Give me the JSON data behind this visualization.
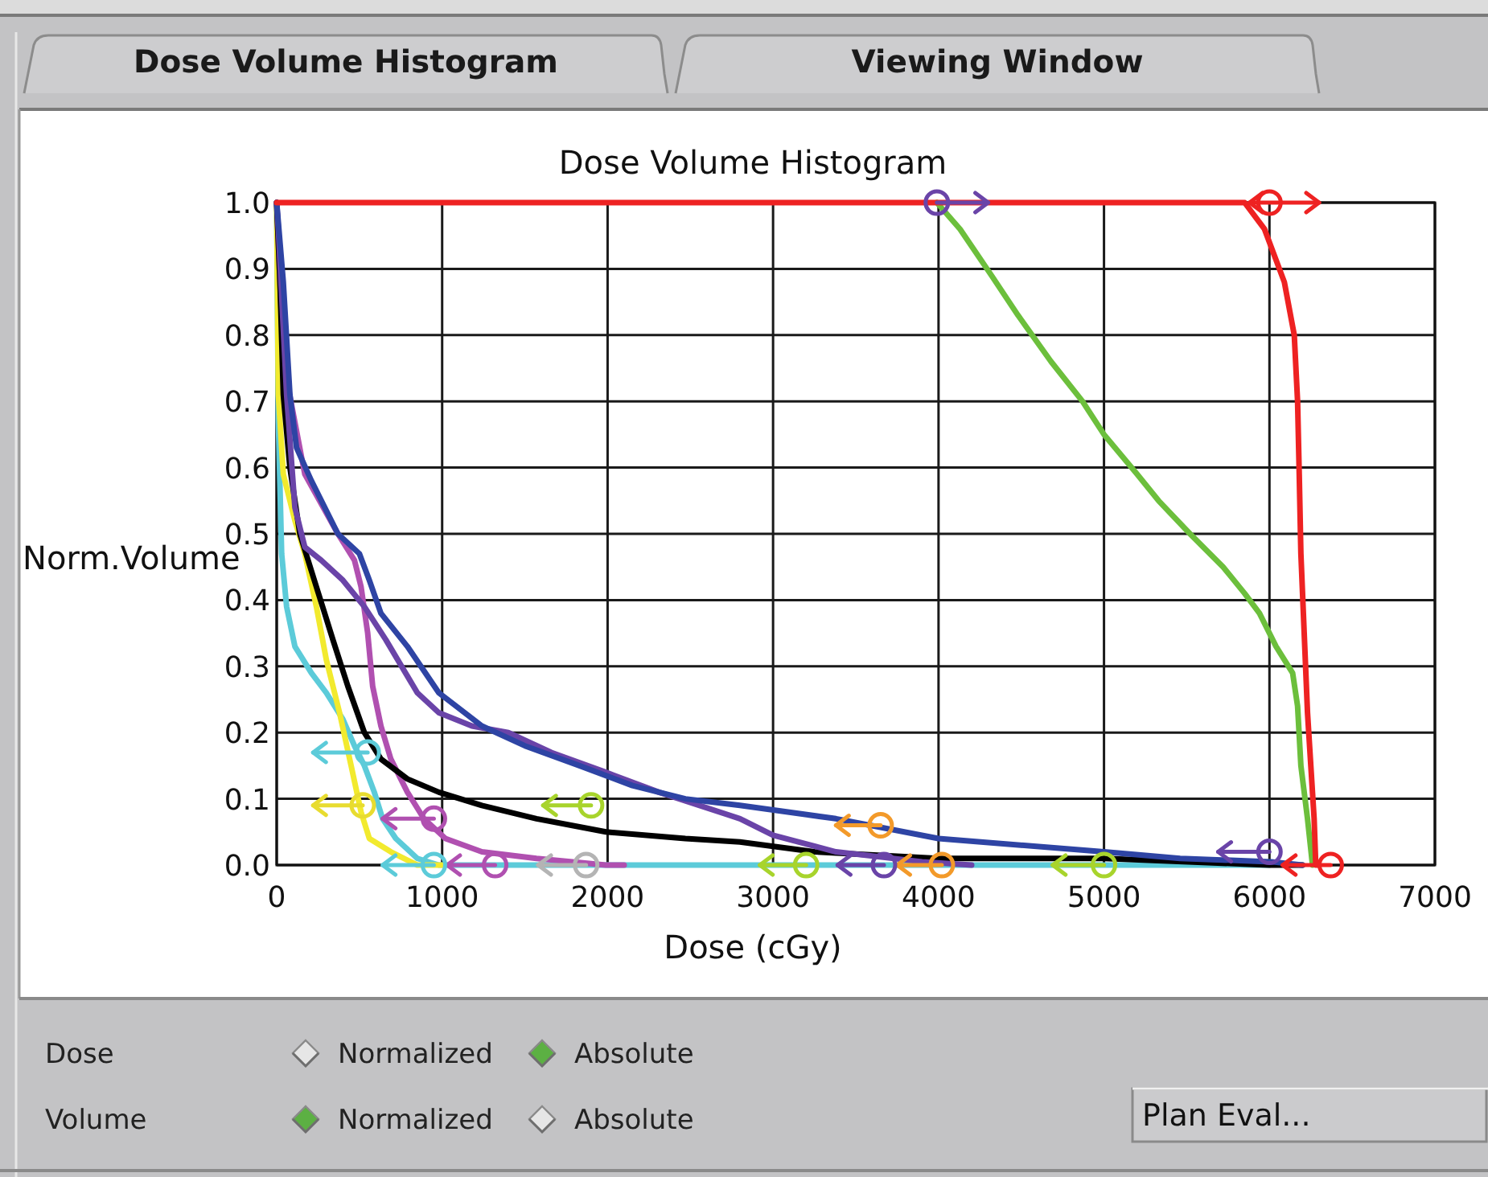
{
  "chart_data": {
    "type": "line",
    "title": "Dose Volume Histogram",
    "xlabel": "Dose (cGy)",
    "ylabel": "Norm.Volume",
    "xlim": [
      0,
      7000
    ],
    "xticks": [
      0,
      1000,
      2000,
      3000,
      4000,
      5000,
      6000,
      7000
    ],
    "ylim": [
      0,
      1.0
    ],
    "yticks": [
      {
        "value": 0,
        "label": "0.0"
      },
      0.1,
      0.2,
      0.3,
      0.4,
      0.5,
      0.6,
      0.7,
      0.8,
      0.9,
      {
        "value": 1,
        "label": "1.0"
      }
    ],
    "grid": true,
    "series": [
      {
        "color": "#5ccbd9",
        "x": [
          0,
          10,
          30,
          60,
          110,
          210,
          300,
          400,
          470,
          530,
          590,
          640,
          720,
          850,
          980,
          6000
        ],
        "values": [
          1,
          0.67,
          0.47,
          0.39,
          0.33,
          0.29,
          0.26,
          0.22,
          0.18,
          0.15,
          0.11,
          0.07,
          0.04,
          0.01,
          0,
          0
        ]
      },
      {
        "color": "#f2ea2e",
        "x": [
          0,
          10,
          40,
          110,
          170,
          240,
          300,
          380,
          450,
          510,
          560,
          690,
          850,
          1000
        ],
        "values": [
          1,
          0.71,
          0.59,
          0.52,
          0.47,
          0.39,
          0.31,
          0.23,
          0.15,
          0.08,
          0.04,
          0.02,
          0,
          0
        ]
      },
      {
        "color": "#b050b0",
        "x": [
          0,
          40,
          170,
          370,
          470,
          510,
          550,
          580,
          630,
          690,
          790,
          890,
          1020,
          1240,
          1570,
          1990,
          2100
        ],
        "values": [
          1,
          0.76,
          0.59,
          0.5,
          0.46,
          0.42,
          0.35,
          0.27,
          0.21,
          0.16,
          0.11,
          0.07,
          0.04,
          0.02,
          0.01,
          0,
          0
        ]
      },
      {
        "color": "#000000",
        "x": [
          0,
          20,
          40,
          80,
          140,
          240,
          340,
          430,
          530,
          630,
          790,
          980,
          1240,
          1570,
          1990,
          2470,
          2800,
          3250,
          4000,
          5000,
          6000,
          6200
        ],
        "values": [
          1,
          0.88,
          0.71,
          0.6,
          0.5,
          0.42,
          0.34,
          0.27,
          0.2,
          0.16,
          0.13,
          0.11,
          0.09,
          0.07,
          0.05,
          0.04,
          0.035,
          0.02,
          0.01,
          0.01,
          0,
          0
        ]
      },
      {
        "color": "#6a44a8",
        "x": [
          0,
          10,
          60,
          110,
          170,
          270,
          400,
          530,
          660,
          850,
          980,
          1180,
          1400,
          1660,
          1990,
          2310,
          2800,
          3000,
          3380,
          3900,
          4200
        ],
        "values": [
          1,
          0.96,
          0.71,
          0.54,
          0.48,
          0.46,
          0.43,
          0.39,
          0.34,
          0.26,
          0.23,
          0.21,
          0.2,
          0.17,
          0.14,
          0.11,
          0.07,
          0.045,
          0.02,
          0.005,
          0
        ]
      },
      {
        "color": "#2e44a4",
        "x": [
          0,
          40,
          80,
          120,
          210,
          370,
          500,
          560,
          630,
          790,
          980,
          1240,
          1500,
          1830,
          2150,
          2470,
          2800,
          3380,
          4000,
          5000,
          5460,
          6010,
          6200
        ],
        "values": [
          1,
          0.88,
          0.71,
          0.63,
          0.58,
          0.5,
          0.47,
          0.43,
          0.38,
          0.33,
          0.26,
          0.21,
          0.18,
          0.15,
          0.12,
          0.1,
          0.09,
          0.07,
          0.04,
          0.02,
          0.01,
          0.005,
          0
        ]
      },
      {
        "color": "#6cbf3c",
        "x": [
          3990,
          4130,
          4320,
          4480,
          4680,
          4870,
          5000,
          5200,
          5330,
          5520,
          5720,
          5850,
          5940,
          6040,
          6140,
          6170,
          6190,
          6230,
          6260
        ],
        "values": [
          1,
          0.96,
          0.89,
          0.83,
          0.76,
          0.7,
          0.65,
          0.59,
          0.55,
          0.5,
          0.45,
          0.41,
          0.38,
          0.33,
          0.29,
          0.24,
          0.15,
          0.07,
          0
        ]
      },
      {
        "color": "#ee2222",
        "x": [
          0,
          5850,
          5970,
          6090,
          6150,
          6170,
          6180,
          6190,
          6210,
          6230,
          6250,
          6270,
          6280,
          6300
        ],
        "values": [
          1,
          1,
          0.96,
          0.88,
          0.8,
          0.7,
          0.59,
          0.47,
          0.35,
          0.23,
          0.15,
          0.07,
          0,
          0
        ]
      },
      {
        "type": "scatter",
        "marker": "circle",
        "x": [
          550,
          520,
          950,
          1900,
          950,
          1320,
          1870,
          3200,
          3670,
          4020,
          3650,
          5000,
          6000,
          6370,
          3990,
          6000
        ],
        "values": [
          0.17,
          0.09,
          0.07,
          0.09,
          0,
          0,
          0,
          0,
          0,
          0,
          0.06,
          0,
          0.02,
          0,
          1.0,
          1.0
        ],
        "xerrors": [
          [
            220,
            550
          ],
          [
            220,
            520
          ],
          [
            640,
            950
          ],
          [
            1610,
            1900
          ],
          [
            640,
            950
          ],
          [
            1030,
            1320
          ],
          [
            1580,
            1870
          ],
          [
            2920,
            3200
          ],
          [
            3390,
            3670
          ],
          [
            3750,
            4020
          ],
          [
            3380,
            3650
          ],
          [
            4690,
            5000
          ],
          [
            5690,
            6000
          ],
          [
            6080,
            6370
          ],
          [
            3990,
            4300
          ],
          [
            5880,
            6300
          ]
        ],
        "colors": [
          "#5ccbd9",
          "#e8dc30",
          "#b050b0",
          "#a8d42c",
          "#5ccbd9",
          "#b050b0",
          "#b4b4b4",
          "#a8d42c",
          "#6a44a8",
          "#f39a2a",
          "#f39a2a",
          "#a8d42c",
          "#6a44a8",
          "#ee2222",
          "#6a44a8",
          "#ee2222"
        ]
      }
    ],
    "annotations": [
      "Dose Volume Histogram",
      "Viewing Window",
      "Dose",
      "Normalized",
      "Absolute",
      "Volume",
      "Normalized",
      "Absolute",
      "Plan Eval..."
    ]
  }
}
